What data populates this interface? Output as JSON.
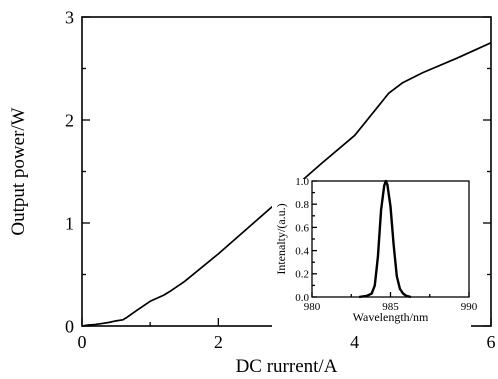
{
  "chart_data": [
    {
      "type": "line",
      "xlabel": "DC rurrent/A",
      "ylabel": "Output power/W",
      "xlim": [
        0,
        6
      ],
      "ylim": [
        0,
        3
      ],
      "xticks": [
        0,
        2,
        4,
        6
      ],
      "yticks": [
        0,
        1,
        2,
        3
      ],
      "grid": false,
      "series": [
        {
          "x": [
            0,
            0.1,
            0.2,
            0.3,
            0.4,
            0.5,
            0.6,
            0.65,
            0.8,
            1.0,
            1.2,
            1.3,
            1.5,
            2.0,
            2.5,
            3.0,
            3.5,
            4.0,
            4.5,
            4.7,
            5.0,
            5.5,
            5.8,
            6.0
          ],
          "y": [
            0,
            0.01,
            0.015,
            0.025,
            0.035,
            0.05,
            0.06,
            0.08,
            0.15,
            0.24,
            0.3,
            0.34,
            0.43,
            0.7,
            0.99,
            1.28,
            1.57,
            1.85,
            2.26,
            2.36,
            2.46,
            2.6,
            2.69,
            2.75
          ]
        }
      ]
    },
    {
      "type": "line",
      "xlabel": "Wavelength/nm",
      "ylabel": "Intenalty/(a.u.)",
      "xlim": [
        980,
        990
      ],
      "ylim": [
        0,
        1.0
      ],
      "xticks": [
        980,
        985,
        990
      ],
      "yticks": [
        0.0,
        0.2,
        0.4,
        0.6,
        0.8,
        1.0
      ],
      "ytick_labels": [
        "0.0",
        "0.2",
        "0.4",
        "0.6",
        "0.8",
        "1.0"
      ],
      "grid": false,
      "legend": "none",
      "series": [
        {
          "x": [
            983.0,
            983.5,
            983.8,
            984.0,
            984.2,
            984.4,
            984.6,
            984.7,
            984.8,
            985.0,
            985.2,
            985.4,
            985.6,
            985.8,
            986.0,
            986.3
          ],
          "y": [
            0.0,
            0.01,
            0.03,
            0.1,
            0.35,
            0.75,
            0.96,
            1.0,
            0.97,
            0.78,
            0.45,
            0.18,
            0.07,
            0.03,
            0.01,
            0.0
          ]
        }
      ]
    }
  ]
}
